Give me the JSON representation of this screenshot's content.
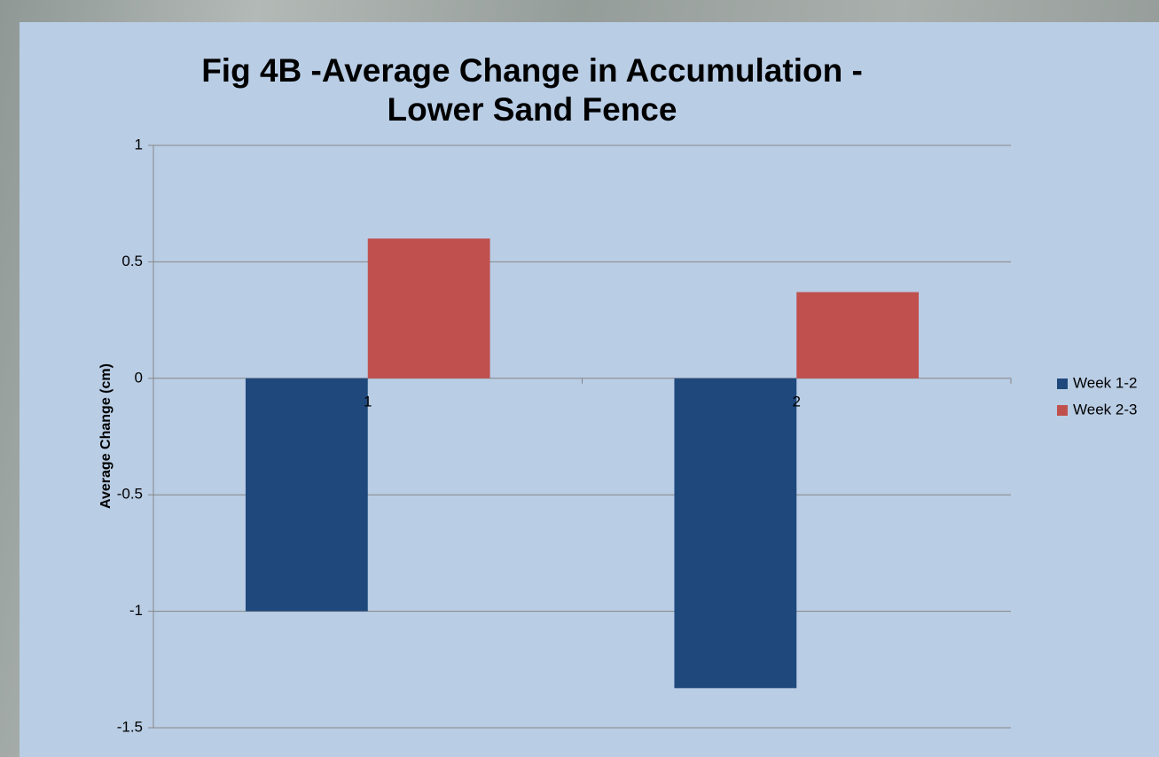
{
  "chart_data": {
    "type": "bar",
    "title": "Fig 4B -Average Change in Accumulation -Lower Sand Fence",
    "y_label": "Average Change (cm)",
    "categories": [
      "1",
      "2"
    ],
    "series": [
      {
        "name": "Week 1-2",
        "color": "#1f497d",
        "values": [
          -1,
          -1.33
        ]
      },
      {
        "name": "Week 2-3",
        "color": "#c0504d",
        "values": [
          0.6,
          0.37
        ]
      }
    ],
    "ylim": [
      -1.5,
      1
    ],
    "yticks": [
      -1.5,
      -1,
      -0.5,
      0,
      0.5,
      1
    ],
    "grid": true,
    "legend": "right"
  }
}
